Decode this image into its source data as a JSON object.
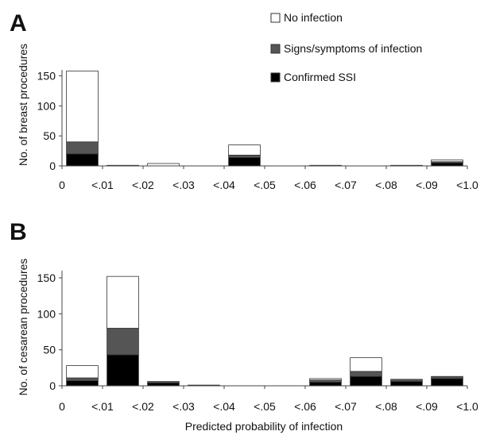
{
  "legend": {
    "items": [
      {
        "label": "No infection",
        "color": "#ffffff"
      },
      {
        "label": "Signs/symptoms of infection",
        "color": "#555555"
      },
      {
        "label": "Confirmed SSI",
        "color": "#000000"
      }
    ]
  },
  "xlabel": "Predicted probability of infection",
  "chart_data": [
    {
      "type": "bar",
      "stacked": true,
      "panel_label": "A",
      "ylabel": "No. of breast procedures",
      "ylim": [
        0,
        160
      ],
      "yticks": [
        "0",
        "50",
        "100",
        "150"
      ],
      "yticks_values": [
        0,
        50,
        100,
        150
      ],
      "xticks": [
        "0",
        "<.01",
        "<.02",
        "<.03",
        "<.04",
        "<.05",
        "<.06",
        "<.07",
        "<.08",
        "<.09",
        "<1.0"
      ],
      "categories": [
        "<.01",
        "<.02",
        "<.03",
        "<.04",
        "<.05",
        "<.06",
        "<.07",
        "<.08",
        "<.09",
        "<1.0"
      ],
      "series": [
        {
          "name": "Confirmed SSI",
          "color": "#000000",
          "values": [
            20,
            0,
            0,
            0,
            14,
            0,
            0,
            0,
            0,
            5
          ]
        },
        {
          "name": "Signs/symptoms of infection",
          "color": "#555555",
          "values": [
            20,
            1,
            0,
            0,
            4,
            0,
            1,
            0,
            1,
            2
          ]
        },
        {
          "name": "No infection",
          "color": "#ffffff",
          "values": [
            118,
            0,
            4,
            0,
            17,
            0,
            0,
            0,
            0,
            3
          ]
        }
      ]
    },
    {
      "type": "bar",
      "stacked": true,
      "panel_label": "B",
      "ylabel": "No. of cesarean procedures",
      "ylim": [
        0,
        160
      ],
      "yticks": [
        "0",
        "50",
        "100",
        "150"
      ],
      "yticks_values": [
        0,
        50,
        100,
        150
      ],
      "xticks": [
        "0",
        "<.01",
        "<.02",
        "<.03",
        "<.04",
        "<.05",
        "<.06",
        "<.07",
        "<.08",
        "<.09",
        "<1.0"
      ],
      "categories": [
        "<.01",
        "<.02",
        "<.03",
        "<.04",
        "<.05",
        "<.06",
        "<.07",
        "<.08",
        "<.09",
        "<1.0"
      ],
      "series": [
        {
          "name": "Confirmed SSI",
          "color": "#000000",
          "values": [
            7,
            43,
            4,
            1,
            0,
            0,
            5,
            13,
            6,
            10
          ]
        },
        {
          "name": "Signs/symptoms of infection",
          "color": "#555555",
          "values": [
            4,
            37,
            2,
            0,
            0,
            0,
            3,
            7,
            3,
            3
          ]
        },
        {
          "name": "No infection",
          "color": "#ffffff",
          "values": [
            17,
            72,
            0,
            0,
            0,
            0,
            2,
            19,
            0,
            0
          ]
        }
      ]
    }
  ]
}
